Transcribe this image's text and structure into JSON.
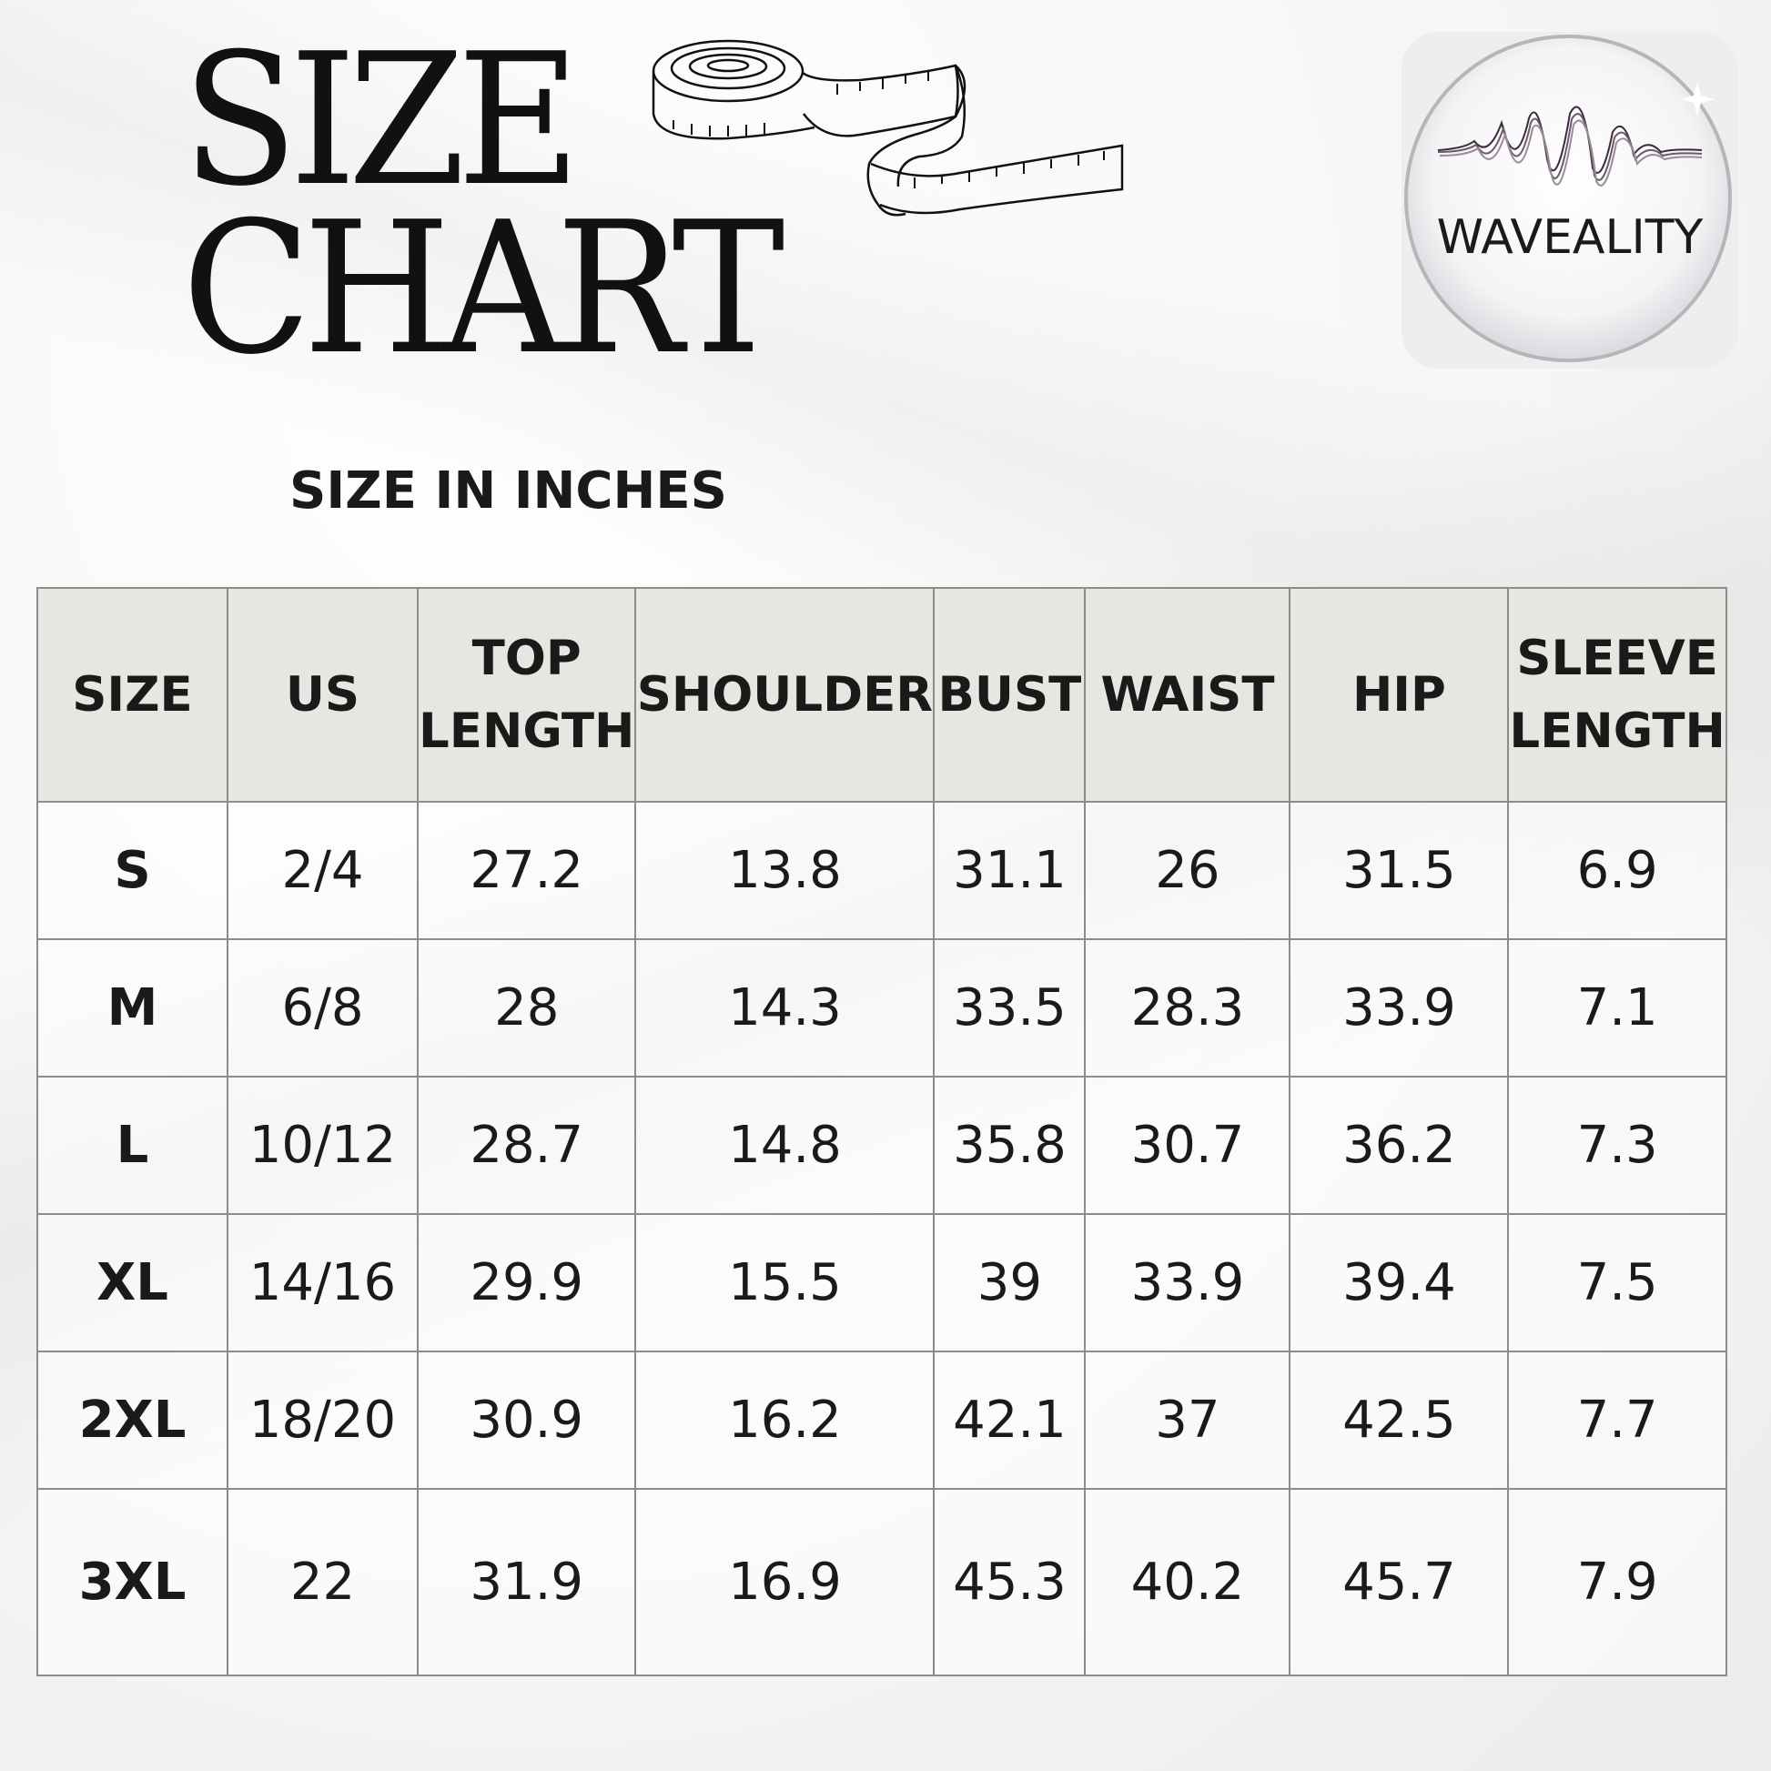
{
  "header": {
    "title_line1": "SIZE",
    "title_line2": "CHART",
    "subtitle": "SIZE IN INCHES"
  },
  "brand": {
    "logo_text": "WAVEALITY"
  },
  "colors": {
    "header_fill": "#e7e6e1",
    "grid_line": "#8c8c8c",
    "text": "#1a1a1a"
  },
  "table": {
    "columns": [
      {
        "line1": "SIZE",
        "line2": ""
      },
      {
        "line1": "US",
        "line2": ""
      },
      {
        "line1": "TOP",
        "line2": "LENGTH"
      },
      {
        "line1": "SHOULDER",
        "line2": ""
      },
      {
        "line1": "BUST",
        "line2": ""
      },
      {
        "line1": "WAIST",
        "line2": ""
      },
      {
        "line1": "HIP",
        "line2": ""
      },
      {
        "line1": "SLEEVE",
        "line2": "LENGTH"
      }
    ],
    "rows": [
      [
        "S",
        "2/4",
        "27.2",
        "13.8",
        "31.1",
        "26",
        "31.5",
        "6.9"
      ],
      [
        "M",
        "6/8",
        "28",
        "14.3",
        "33.5",
        "28.3",
        "33.9",
        "7.1"
      ],
      [
        "L",
        "10/12",
        "28.7",
        "14.8",
        "35.8",
        "30.7",
        "36.2",
        "7.3"
      ],
      [
        "XL",
        "14/16",
        "29.9",
        "15.5",
        "39",
        "33.9",
        "39.4",
        "7.5"
      ],
      [
        "2XL",
        "18/20",
        "30.9",
        "16.2",
        "42.1",
        "37",
        "42.5",
        "7.7"
      ],
      [
        "3XL",
        "22",
        "31.9",
        "16.9",
        "45.3",
        "40.2",
        "45.7",
        "7.9"
      ]
    ]
  }
}
